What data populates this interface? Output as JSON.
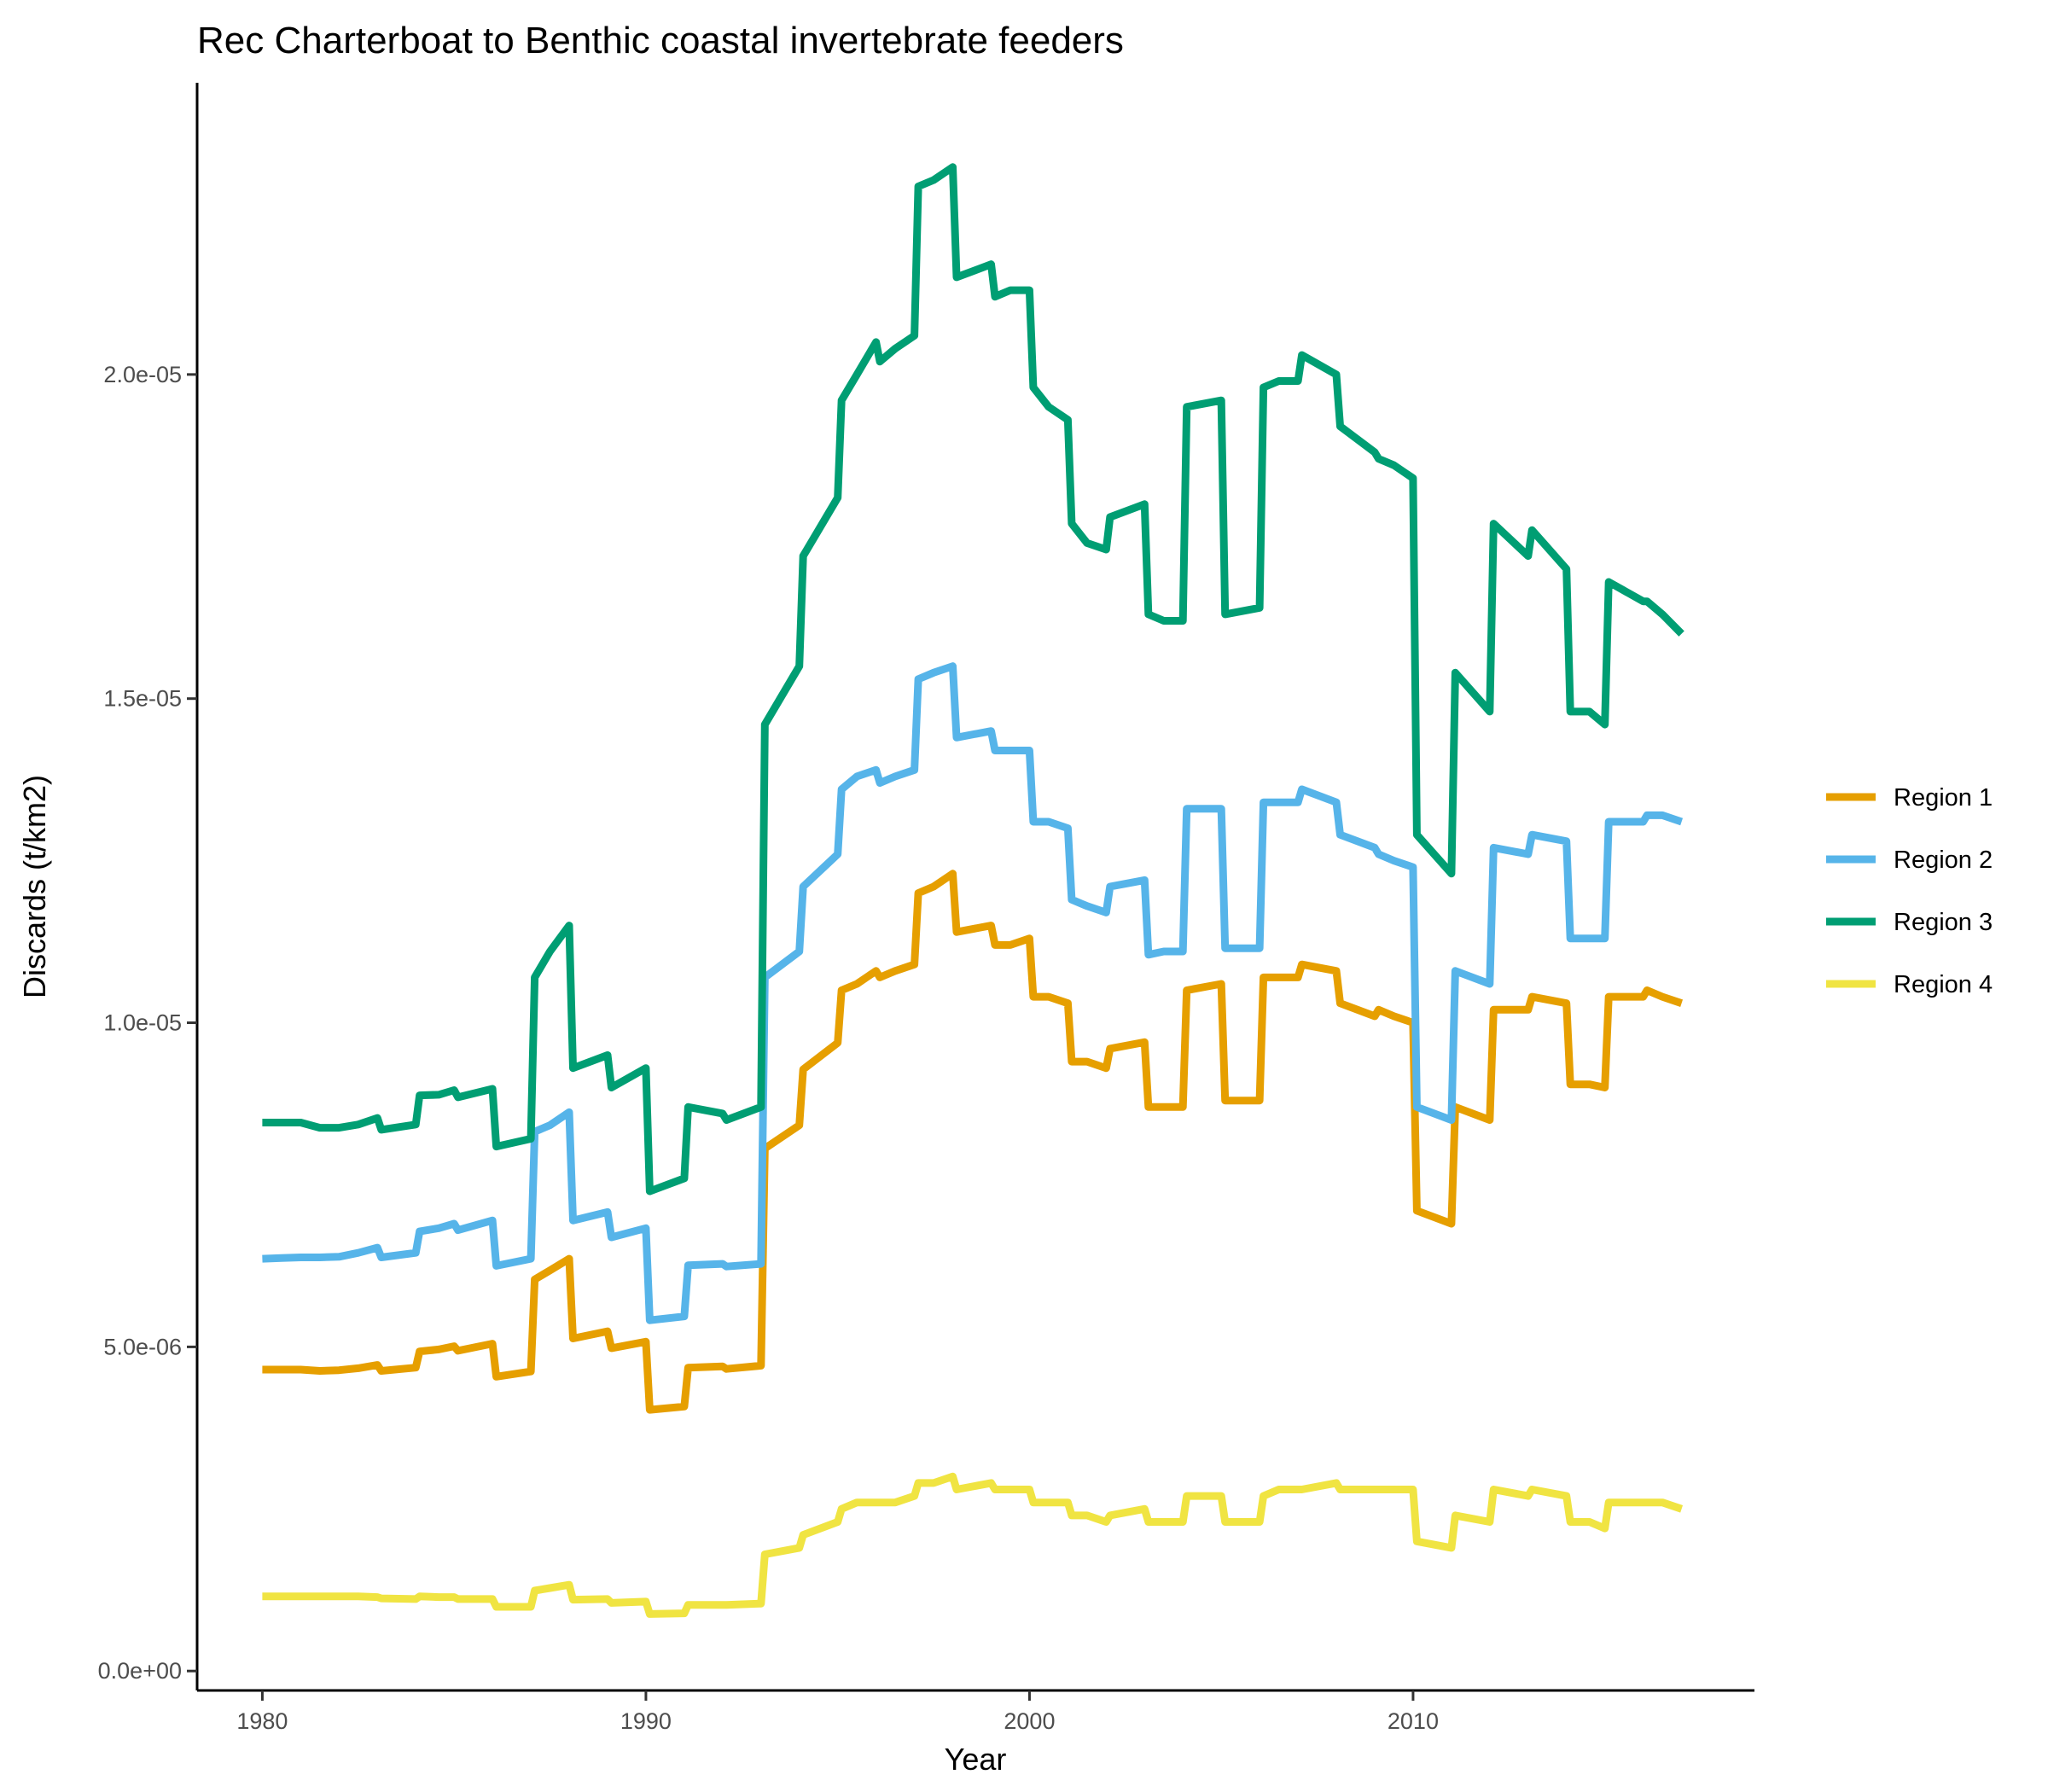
{
  "chart_data": {
    "type": "line",
    "title": "Rec Charterboat to Benthic coastal invertebrate feeders",
    "xlabel": "Year",
    "ylabel": "Discards (t/km2)",
    "xlim": [
      1978.3,
      2018.9
    ],
    "ylim": [
      -3e-07,
      2.45e-05
    ],
    "x_ticks": [
      1980,
      1990,
      2000,
      2010
    ],
    "x_tick_labels": [
      "1980",
      "1990",
      "2000",
      "2010"
    ],
    "y_ticks": [
      0,
      5e-06,
      1e-05,
      1.5e-05,
      2e-05
    ],
    "y_tick_labels": [
      "0.0e+00",
      "5.0e-06",
      "1.0e-05",
      "1.5e-05",
      "2.0e-05"
    ],
    "grid": false,
    "legend_position": "right",
    "x": [
      1980.0,
      1980.5,
      1981.0,
      1981.5,
      1982.0,
      1982.5,
      1983.0,
      1983.1,
      1984.0,
      1984.1,
      1984.6,
      1985.0,
      1985.1,
      1986.0,
      1986.1,
      1987.0,
      1987.1,
      1987.5,
      1988.0,
      1988.1,
      1989.0,
      1989.1,
      1990.0,
      1990.1,
      1991.0,
      1991.1,
      1992.0,
      1992.1,
      1993.0,
      1993.1,
      1994.0,
      1994.1,
      1995.0,
      1995.1,
      1995.5,
      1996.0,
      1996.1,
      1996.5,
      1997.0,
      1997.1,
      1997.5,
      1998.0,
      1998.1,
      1999.0,
      1999.1,
      1999.5,
      2000.0,
      2000.1,
      2000.5,
      2001.0,
      2001.1,
      2001.5,
      2002.0,
      2002.1,
      2003.0,
      2003.1,
      2003.5,
      2004.0,
      2004.1,
      2005.0,
      2005.1,
      2006.0,
      2006.1,
      2006.5,
      2007.0,
      2007.1,
      2008.0,
      2008.1,
      2009.0,
      2009.1,
      2009.5,
      2010.0,
      2010.1,
      2011.0,
      2011.1,
      2012.0,
      2012.1,
      2013.0,
      2013.1,
      2014.0,
      2014.1,
      2014.6,
      2015.0,
      2015.1,
      2016.0,
      2016.1,
      2016.5,
      2017.0
    ],
    "series": [
      {
        "name": "Region 1",
        "color": "#E69F00",
        "values": [
          4.65e-06,
          4.65e-06,
          4.65e-06,
          4.63e-06,
          4.64e-06,
          4.67e-06,
          4.72e-06,
          4.63e-06,
          4.68e-06,
          4.93e-06,
          4.96e-06,
          5.01e-06,
          4.94e-06,
          5.05e-06,
          4.54e-06,
          4.62e-06,
          6.04e-06,
          6.18e-06,
          6.36e-06,
          5.13e-06,
          5.24e-06,
          4.98e-06,
          5.08e-06,
          4.03e-06,
          4.08e-06,
          4.68e-06,
          4.7e-06,
          4.66e-06,
          4.71e-06,
          8.06e-06,
          8.42e-06,
          9.28e-06,
          9.69e-06,
          1.05e-05,
          1.06e-05,
          1.08e-05,
          1.07e-05,
          1.08e-05,
          1.09e-05,
          1.2e-05,
          1.21e-05,
          1.23e-05,
          1.14e-05,
          1.15e-05,
          1.12e-05,
          1.12e-05,
          1.13e-05,
          1.04e-05,
          1.04e-05,
          1.03e-05,
          9.4e-06,
          9.4e-06,
          9.3e-06,
          9.6e-06,
          9.7e-06,
          8.7e-06,
          8.7e-06,
          8.7e-06,
          1.05e-05,
          1.06e-05,
          8.8e-06,
          8.8e-06,
          1.07e-05,
          1.07e-05,
          1.07e-05,
          1.09e-05,
          1.08e-05,
          1.03e-05,
          1.01e-05,
          1.02e-05,
          1.01e-05,
          1e-05,
          7.1e-06,
          6.9e-06,
          8.7e-06,
          8.5e-06,
          1.02e-05,
          1.02e-05,
          1.04e-05,
          1.03e-05,
          9.05e-06,
          9.05e-06,
          9e-06,
          1.04e-05,
          1.04e-05,
          1.05e-05,
          1.04e-05,
          1.03e-05
        ]
      },
      {
        "name": "Region 2",
        "color": "#56B4E9",
        "values": [
          6.36e-06,
          6.37e-06,
          6.38e-06,
          6.38e-06,
          6.39e-06,
          6.45e-06,
          6.53e-06,
          6.38e-06,
          6.45e-06,
          6.78e-06,
          6.83e-06,
          6.9e-06,
          6.8e-06,
          6.95e-06,
          6.25e-06,
          6.36e-06,
          8.32e-06,
          8.42e-06,
          8.62e-06,
          6.95e-06,
          7.08e-06,
          6.69e-06,
          6.83e-06,
          5.41e-06,
          5.47e-06,
          6.26e-06,
          6.28e-06,
          6.24e-06,
          6.28e-06,
          1.07e-05,
          1.11e-05,
          1.21e-05,
          1.26e-05,
          1.36e-05,
          1.38e-05,
          1.39e-05,
          1.37e-05,
          1.38e-05,
          1.39e-05,
          1.53e-05,
          1.54e-05,
          1.55e-05,
          1.44e-05,
          1.45e-05,
          1.42e-05,
          1.42e-05,
          1.42e-05,
          1.31e-05,
          1.31e-05,
          1.3e-05,
          1.19e-05,
          1.18e-05,
          1.17e-05,
          1.21e-05,
          1.22e-05,
          1.105e-05,
          1.11e-05,
          1.11e-05,
          1.33e-05,
          1.33e-05,
          1.115e-05,
          1.115e-05,
          1.34e-05,
          1.34e-05,
          1.34e-05,
          1.36e-05,
          1.34e-05,
          1.29e-05,
          1.27e-05,
          1.26e-05,
          1.25e-05,
          1.24e-05,
          8.7e-06,
          8.5e-06,
          1.08e-05,
          1.06e-05,
          1.27e-05,
          1.26e-05,
          1.29e-05,
          1.28e-05,
          1.13e-05,
          1.13e-05,
          1.13e-05,
          1.31e-05,
          1.31e-05,
          1.32e-05,
          1.32e-05,
          1.31e-05
        ]
      },
      {
        "name": "Region 3",
        "color": "#009E73",
        "values": [
          8.46e-06,
          8.46e-06,
          8.46e-06,
          8.38e-06,
          8.38e-06,
          8.43e-06,
          8.53e-06,
          8.35e-06,
          8.43e-06,
          8.88e-06,
          8.89e-06,
          8.96e-06,
          8.85e-06,
          8.98e-06,
          8.09e-06,
          8.21e-06,
          1.07e-05,
          1.11e-05,
          1.15e-05,
          9.3e-06,
          9.5e-06,
          9e-06,
          9.3e-06,
          7.4e-06,
          7.6e-06,
          8.7e-06,
          8.6e-06,
          8.5e-06,
          8.7e-06,
          1.46e-05,
          1.55e-05,
          1.72e-05,
          1.81e-05,
          1.96e-05,
          2e-05,
          2.05e-05,
          2.02e-05,
          2.04e-05,
          2.06e-05,
          2.29e-05,
          2.3e-05,
          2.32e-05,
          2.15e-05,
          2.17e-05,
          2.12e-05,
          2.13e-05,
          2.13e-05,
          1.98e-05,
          1.95e-05,
          1.93e-05,
          1.77e-05,
          1.74e-05,
          1.73e-05,
          1.78e-05,
          1.8e-05,
          1.63e-05,
          1.62e-05,
          1.62e-05,
          1.95e-05,
          1.96e-05,
          1.63e-05,
          1.64e-05,
          1.98e-05,
          1.99e-05,
          1.99e-05,
          2.03e-05,
          2e-05,
          1.92e-05,
          1.88e-05,
          1.87e-05,
          1.86e-05,
          1.84e-05,
          1.29e-05,
          1.23e-05,
          1.54e-05,
          1.48e-05,
          1.77e-05,
          1.72e-05,
          1.76e-05,
          1.7e-05,
          1.48e-05,
          1.48e-05,
          1.46e-05,
          1.68e-05,
          1.65e-05,
          1.65e-05,
          1.63e-05,
          1.6e-05
        ]
      },
      {
        "name": "Region 4",
        "color": "#F0E442",
        "values": [
          1.15e-06,
          1.15e-06,
          1.15e-06,
          1.15e-06,
          1.15e-06,
          1.15e-06,
          1.14e-06,
          1.12e-06,
          1.11e-06,
          1.15e-06,
          1.14e-06,
          1.14e-06,
          1.11e-06,
          1.11e-06,
          9.9e-07,
          9.9e-07,
          1.24e-06,
          1.28e-06,
          1.33e-06,
          1.1e-06,
          1.11e-06,
          1.05e-06,
          1.07e-06,
          8.8e-07,
          8.9e-07,
          1.02e-06,
          1.02e-06,
          1.02e-06,
          1.04e-06,
          1.8e-06,
          1.9e-06,
          2.1e-06,
          2.3e-06,
          2.5e-06,
          2.6e-06,
          2.6e-06,
          2.6e-06,
          2.6e-06,
          2.7e-06,
          2.9e-06,
          2.9e-06,
          3e-06,
          2.8e-06,
          2.9e-06,
          2.8e-06,
          2.8e-06,
          2.8e-06,
          2.6e-06,
          2.6e-06,
          2.6e-06,
          2.4e-06,
          2.4e-06,
          2.3e-06,
          2.4e-06,
          2.5e-06,
          2.3e-06,
          2.3e-06,
          2.3e-06,
          2.7e-06,
          2.7e-06,
          2.3e-06,
          2.3e-06,
          2.7e-06,
          2.8e-06,
          2.8e-06,
          2.8e-06,
          2.9e-06,
          2.8e-06,
          2.8e-06,
          2.8e-06,
          2.8e-06,
          2.8e-06,
          2e-06,
          1.9e-06,
          2.4e-06,
          2.3e-06,
          2.8e-06,
          2.7e-06,
          2.8e-06,
          2.7e-06,
          2.3e-06,
          2.3e-06,
          2.2e-06,
          2.6e-06,
          2.6e-06,
          2.6e-06,
          2.6e-06,
          2.5e-06
        ]
      }
    ]
  }
}
